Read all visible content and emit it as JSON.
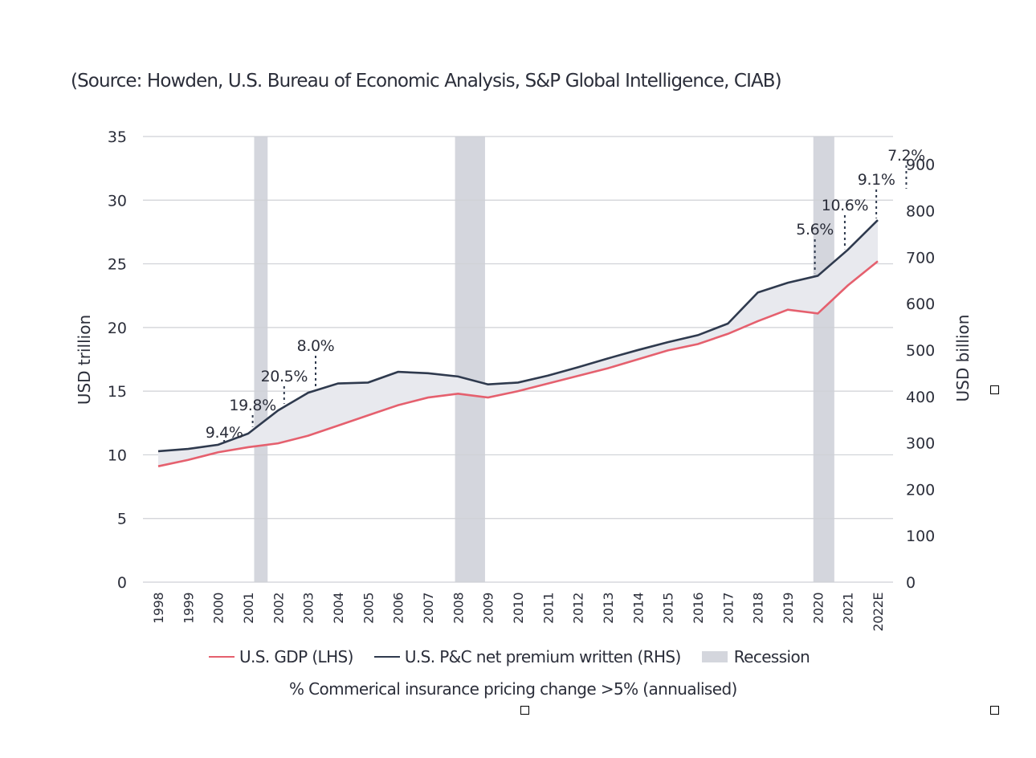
{
  "source_text": "(Source: Howden, U.S. Bureau of Economic Analysis, S&P Global Intelligence, CIAB)",
  "legend": {
    "gdp": "U.S. GDP (LHS)",
    "pc": "U.S. P&C net premium written (RHS)",
    "recession": "Recession"
  },
  "footnote": "% Commerical insurance pricing change >5% (annualised)",
  "colors": {
    "gdp": "#e5606e",
    "pc": "#2f3a4e",
    "fill": "#e8e9ee",
    "recession": "#d4d6dd",
    "grid": "#cfd1d6"
  },
  "chart_data": {
    "type": "line",
    "x": [
      "1998",
      "1999",
      "2000",
      "2001",
      "2002",
      "2003",
      "2004",
      "2005",
      "2006",
      "2007",
      "2008",
      "2009",
      "2010",
      "2011",
      "2012",
      "2013",
      "2014",
      "2015",
      "2016",
      "2017",
      "2018",
      "2019",
      "2020",
      "2021",
      "2022E"
    ],
    "series": [
      {
        "name": "U.S. GDP (LHS)",
        "axis": "left",
        "values": [
          9.1,
          9.6,
          10.2,
          10.6,
          10.9,
          11.5,
          12.3,
          13.1,
          13.9,
          14.5,
          14.8,
          14.5,
          15.0,
          15.6,
          16.2,
          16.8,
          17.5,
          18.2,
          18.7,
          19.5,
          20.5,
          21.4,
          21.1,
          23.3,
          25.2
        ]
      },
      {
        "name": "U.S. P&C net premium written (RHS)",
        "axis": "right",
        "values": [
          282,
          287,
          296,
          320,
          370,
          408,
          428,
          430,
          453,
          450,
          443,
          426,
          430,
          445,
          463,
          482,
          500,
          517,
          532,
          557,
          624,
          645,
          660,
          716,
          780
        ]
      }
    ],
    "recessions": [
      [
        2001.2,
        2001.65
      ],
      [
        2007.9,
        2008.9
      ],
      [
        2019.85,
        2020.55
      ]
    ],
    "annotations": [
      {
        "label": "9.4%",
        "x": 2000.2
      },
      {
        "label": "19.8%",
        "x": 2001.15
      },
      {
        "label": "20.5%",
        "x": 2002.2
      },
      {
        "label": "8.0%",
        "x": 2003.25
      },
      {
        "label": "5.6%",
        "x": 2019.9
      },
      {
        "label": "10.6%",
        "x": 2020.9
      },
      {
        "label": "9.1%",
        "x": 2021.95
      },
      {
        "label": "7.2%",
        "x": 2022.95
      }
    ],
    "ylabel": "USD trillion",
    "y2label": "USD billion",
    "ylim": [
      0,
      35
    ],
    "y2lim": [
      0,
      960
    ],
    "yticks": [
      0,
      5,
      10,
      15,
      20,
      25,
      30,
      35
    ],
    "y2ticks": [
      0,
      100,
      200,
      300,
      400,
      500,
      600,
      700,
      800,
      900
    ],
    "grid": true,
    "legend_position": "bottom"
  }
}
